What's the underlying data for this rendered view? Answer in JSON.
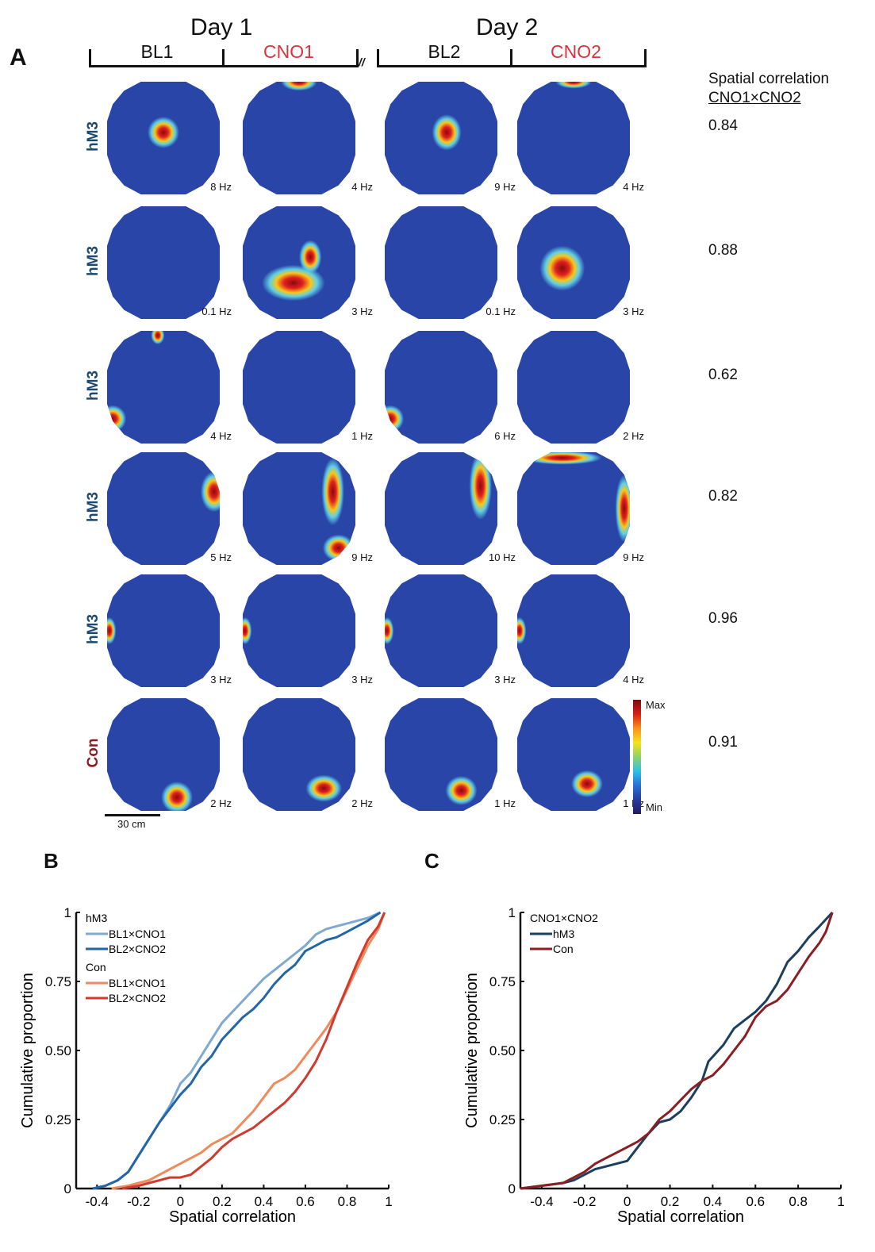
{
  "panelA": {
    "letter": "A",
    "day1": "Day 1",
    "day2": "Day 2",
    "conditions": [
      {
        "label": "BL1",
        "color": "#111111"
      },
      {
        "label": "CNO1",
        "color": "#d9343c"
      },
      {
        "label": "BL2",
        "color": "#111111"
      },
      {
        "label": "CNO2",
        "color": "#d9343c"
      }
    ],
    "break_mark": "//",
    "corr_header_line1": "Spatial correlation",
    "corr_header_line2": "CNO1×CNO2",
    "rows": [
      {
        "group": "hM3",
        "rates": [
          "8 Hz",
          "4 Hz",
          "9 Hz",
          "4 Hz"
        ],
        "corr": "0.84"
      },
      {
        "group": "hM3",
        "rates": [
          "0.1 Hz",
          "3 Hz",
          "0.1 Hz",
          "3 Hz"
        ],
        "corr": "0.88"
      },
      {
        "group": "hM3",
        "rates": [
          "4 Hz",
          "1 Hz",
          "6 Hz",
          "2 Hz"
        ],
        "corr": "0.62"
      },
      {
        "group": "hM3",
        "rates": [
          "5 Hz",
          "9 Hz",
          "10 Hz",
          "9 Hz"
        ],
        "corr": "0.82"
      },
      {
        "group": "hM3",
        "rates": [
          "3 Hz",
          "3 Hz",
          "3 Hz",
          "4 Hz"
        ],
        "corr": "0.96"
      },
      {
        "group": "Con",
        "rates": [
          "2 Hz",
          "2 Hz",
          "1 Hz",
          "1 Hz"
        ],
        "corr": "0.91"
      }
    ],
    "scale_bar": "30 cm",
    "colorbar_max": "Max",
    "colorbar_min": "Min"
  },
  "panelB": {
    "letter": "B"
  },
  "panelC": {
    "letter": "C"
  },
  "chart_data": [
    {
      "type": "line",
      "title": "",
      "xlabel": "Spatial correlation",
      "ylabel": "Cumulative proportion",
      "xlim": [
        -0.5,
        1.0
      ],
      "ylim": [
        0,
        1
      ],
      "xticks": [
        "-0.4",
        "-0.2",
        "0",
        "0.2",
        "0.4",
        "0.6",
        "0.8",
        "1"
      ],
      "yticks": [
        "0",
        "0.25",
        "0.50",
        "0.75",
        "1"
      ],
      "legend_position": "top-left",
      "legend_groups": [
        {
          "title": "hM3",
          "entries": [
            "BL1×CNO1",
            "BL2×CNO2"
          ]
        },
        {
          "title": "Con",
          "entries": [
            "BL1×CNO1",
            "BL2×CNO2"
          ]
        }
      ],
      "series": [
        {
          "name": "hM3 BL1×CNO1",
          "color": "#7fa9cf",
          "x": [
            -0.42,
            -0.36,
            -0.3,
            -0.25,
            -0.2,
            -0.15,
            -0.1,
            -0.05,
            0.0,
            0.05,
            0.1,
            0.15,
            0.2,
            0.25,
            0.3,
            0.35,
            0.4,
            0.45,
            0.5,
            0.55,
            0.6,
            0.65,
            0.7,
            0.75,
            0.8,
            0.85,
            0.9,
            0.96
          ],
          "y": [
            0.0,
            0.01,
            0.03,
            0.06,
            0.12,
            0.18,
            0.24,
            0.3,
            0.38,
            0.42,
            0.48,
            0.54,
            0.6,
            0.64,
            0.68,
            0.72,
            0.76,
            0.79,
            0.82,
            0.85,
            0.88,
            0.92,
            0.94,
            0.95,
            0.96,
            0.97,
            0.98,
            1.0
          ]
        },
        {
          "name": "hM3 BL2×CNO2",
          "color": "#2266a8",
          "x": [
            -0.42,
            -0.36,
            -0.3,
            -0.25,
            -0.2,
            -0.15,
            -0.1,
            -0.05,
            0.0,
            0.05,
            0.1,
            0.15,
            0.2,
            0.25,
            0.3,
            0.35,
            0.4,
            0.45,
            0.5,
            0.55,
            0.6,
            0.65,
            0.7,
            0.75,
            0.8,
            0.85,
            0.9,
            0.96
          ],
          "y": [
            0.0,
            0.01,
            0.03,
            0.06,
            0.12,
            0.18,
            0.24,
            0.29,
            0.34,
            0.38,
            0.44,
            0.48,
            0.54,
            0.58,
            0.62,
            0.65,
            0.69,
            0.74,
            0.78,
            0.81,
            0.86,
            0.88,
            0.9,
            0.91,
            0.93,
            0.95,
            0.97,
            1.0
          ]
        },
        {
          "name": "Con BL1×CNO1",
          "color": "#ee8a5c",
          "x": [
            -0.33,
            -0.25,
            -0.2,
            -0.15,
            -0.1,
            -0.05,
            0.0,
            0.05,
            0.1,
            0.15,
            0.2,
            0.25,
            0.3,
            0.35,
            0.4,
            0.45,
            0.5,
            0.55,
            0.6,
            0.65,
            0.7,
            0.75,
            0.8,
            0.85,
            0.9,
            0.95,
            0.98
          ],
          "y": [
            0.0,
            0.01,
            0.02,
            0.03,
            0.05,
            0.07,
            0.09,
            0.11,
            0.13,
            0.16,
            0.18,
            0.2,
            0.24,
            0.28,
            0.33,
            0.38,
            0.4,
            0.43,
            0.48,
            0.53,
            0.58,
            0.64,
            0.72,
            0.8,
            0.88,
            0.94,
            1.0
          ]
        },
        {
          "name": "Con BL2×CNO2",
          "color": "#d13a2f",
          "x": [
            -0.28,
            -0.2,
            -0.15,
            -0.1,
            -0.05,
            0.0,
            0.05,
            0.1,
            0.15,
            0.2,
            0.25,
            0.3,
            0.35,
            0.4,
            0.45,
            0.5,
            0.55,
            0.6,
            0.65,
            0.7,
            0.75,
            0.8,
            0.85,
            0.9,
            0.95,
            0.98
          ],
          "y": [
            0.0,
            0.01,
            0.02,
            0.03,
            0.04,
            0.04,
            0.05,
            0.08,
            0.11,
            0.15,
            0.18,
            0.2,
            0.22,
            0.25,
            0.28,
            0.31,
            0.35,
            0.4,
            0.46,
            0.54,
            0.64,
            0.73,
            0.82,
            0.9,
            0.95,
            1.0
          ]
        }
      ]
    },
    {
      "type": "line",
      "title": "",
      "xlabel": "Spatial correlation",
      "ylabel": "Cumulative proportion",
      "xlim": [
        -0.5,
        1.0
      ],
      "ylim": [
        0,
        1
      ],
      "xticks": [
        "-0.4",
        "-0.2",
        "0",
        "0.2",
        "0.4",
        "0.6",
        "0.8",
        "1"
      ],
      "yticks": [
        "0",
        "0.25",
        "0.50",
        "0.75",
        "1"
      ],
      "legend_position": "top-left",
      "legend_title": "CNO1×CNO2",
      "series": [
        {
          "name": "hM3",
          "color": "#1c3f5e",
          "x": [
            -0.5,
            -0.4,
            -0.3,
            -0.25,
            -0.2,
            -0.15,
            -0.1,
            -0.05,
            0.0,
            0.05,
            0.1,
            0.15,
            0.2,
            0.25,
            0.3,
            0.35,
            0.38,
            0.45,
            0.5,
            0.55,
            0.6,
            0.65,
            0.7,
            0.75,
            0.8,
            0.85,
            0.9,
            0.96
          ],
          "y": [
            0.0,
            0.01,
            0.02,
            0.03,
            0.05,
            0.07,
            0.08,
            0.09,
            0.1,
            0.15,
            0.2,
            0.24,
            0.25,
            0.28,
            0.33,
            0.39,
            0.46,
            0.52,
            0.58,
            0.61,
            0.64,
            0.68,
            0.74,
            0.82,
            0.86,
            0.91,
            0.95,
            1.0
          ]
        },
        {
          "name": "Con",
          "color": "#8b1e22",
          "x": [
            -0.5,
            -0.4,
            -0.3,
            -0.25,
            -0.2,
            -0.15,
            -0.1,
            -0.05,
            0.0,
            0.05,
            0.1,
            0.15,
            0.2,
            0.25,
            0.3,
            0.35,
            0.4,
            0.45,
            0.5,
            0.55,
            0.6,
            0.65,
            0.7,
            0.75,
            0.8,
            0.85,
            0.9,
            0.93,
            0.96
          ],
          "y": [
            0.0,
            0.01,
            0.02,
            0.04,
            0.06,
            0.09,
            0.11,
            0.13,
            0.15,
            0.17,
            0.2,
            0.25,
            0.28,
            0.32,
            0.36,
            0.39,
            0.41,
            0.45,
            0.5,
            0.55,
            0.62,
            0.66,
            0.68,
            0.72,
            0.78,
            0.84,
            0.89,
            0.93,
            1.0
          ]
        }
      ]
    }
  ]
}
